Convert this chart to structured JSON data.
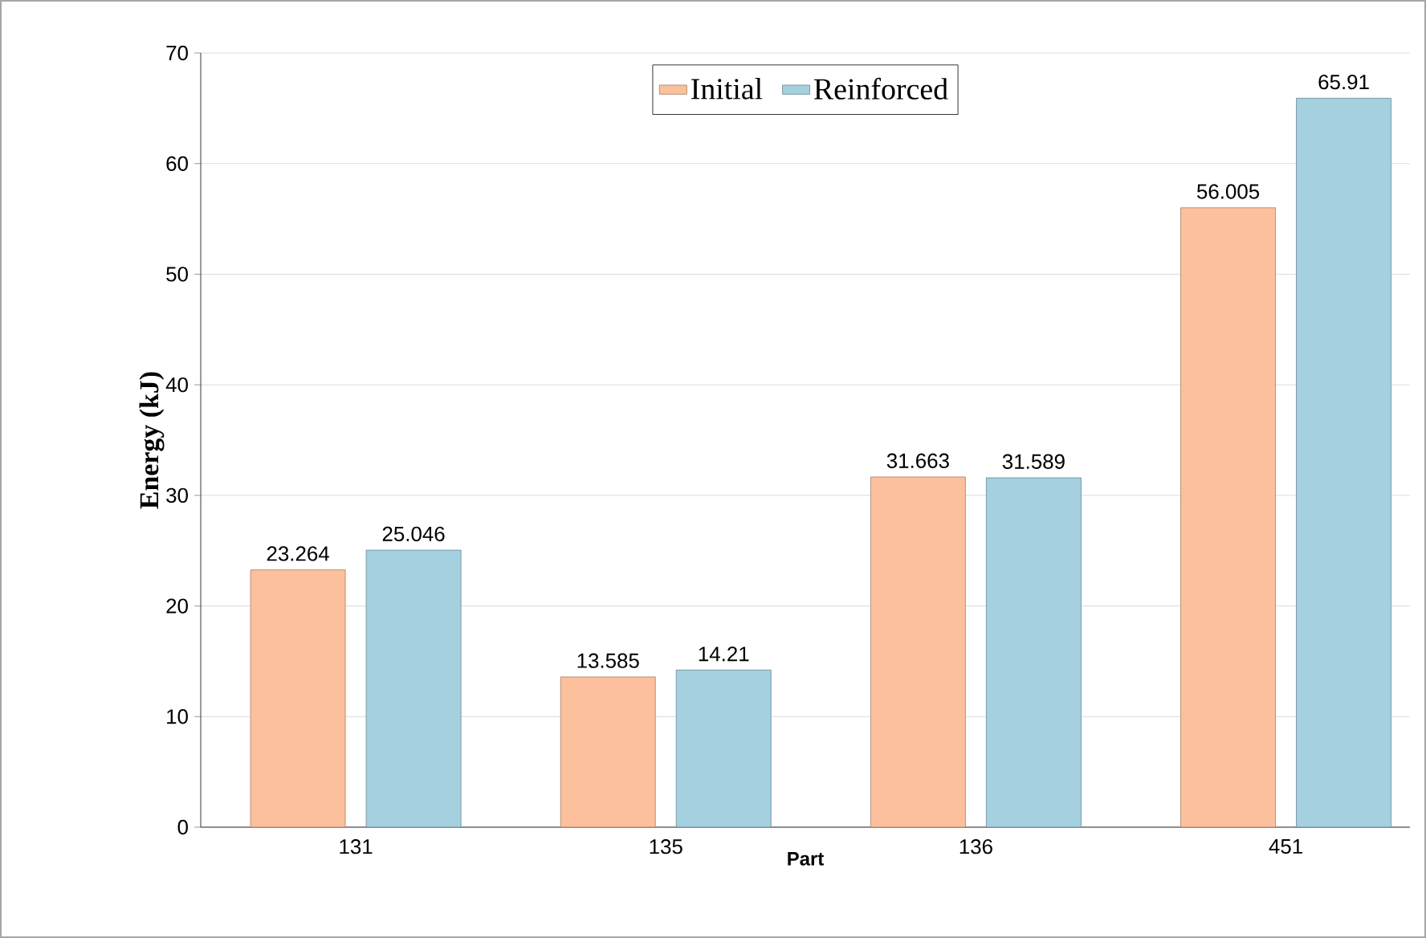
{
  "chart_data": {
    "type": "bar",
    "xlabel": "Part",
    "ylabel": "Energy (kJ)",
    "categories": [
      "131",
      "135",
      "136",
      "451"
    ],
    "series": [
      {
        "name": "Initial",
        "color": "#fcc09c",
        "values": [
          23.264,
          13.585,
          31.663,
          56.005
        ]
      },
      {
        "name": "Reinforced",
        "color": "#a4d0e0",
        "values": [
          25.046,
          14.21,
          31.589,
          65.91
        ]
      }
    ],
    "ylim": [
      0,
      70
    ],
    "yticks": [
      0,
      10,
      20,
      30,
      40,
      50,
      60,
      70
    ],
    "grid": "y",
    "legend": "top",
    "data_labels": true
  }
}
